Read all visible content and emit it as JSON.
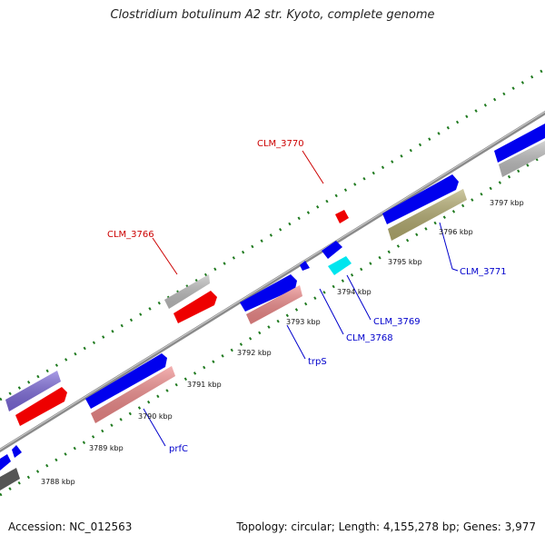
{
  "title": "Clostridium botulinum A2 str. Kyoto, complete genome",
  "footer": {
    "accession": "Accession: NC_012563",
    "info": "Topology: circular; Length: 4,155,278 bp; Genes: 3,977"
  },
  "colors": {
    "backbone": "#8a8a8a",
    "tick_dots": "#1f7a1f",
    "label_red": "#cc0000",
    "label_blue": "#0000cc",
    "gene_blue": "#0000ee",
    "gene_red": "#ee0000",
    "gene_grey": "#bdbdbd",
    "gene_pink": "#ee8888",
    "gene_cyan": "#00e5ee",
    "gene_olive": "#b3ab6e",
    "gene_violet": "#7b68d9",
    "gene_dark": "#555555"
  },
  "ticks": [
    "3788 kbp",
    "3789 kbp",
    "3790 kbp",
    "3791 kbp",
    "3792 kbp",
    "3793 kbp",
    "3794 kbp",
    "3795 kbp",
    "3796 kbp",
    "3797 kbp"
  ],
  "callouts": [
    "CLM_3770",
    "CLM_3766",
    "CLM_3771",
    "CLM_3769",
    "CLM_3768",
    "trpS",
    "prfC"
  ]
}
